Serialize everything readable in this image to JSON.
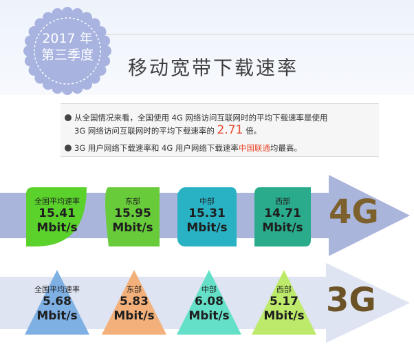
{
  "badge": {
    "line1": "2017 年",
    "line2": "第三季度"
  },
  "title": "移动宽带下载速率",
  "bullets": {
    "b1_l1": "从全国情况来看，全国使用 4G 网络访问互联网时的平均下载速率是使用",
    "b1_l2": "3G 网络访问互联网时的平均下载速率的",
    "b1_num": "2.71",
    "b1_tail": "倍。",
    "b2_pre": "3G 用户网络下载速率和 4G 用户网络下载速率",
    "b2_red": "中国联通",
    "b2_post": "均最高。"
  },
  "g4": {
    "label": "4G",
    "panels": [
      {
        "name": "全国平均速率",
        "value": "15.41",
        "unit": "Mbit/s"
      },
      {
        "name": "东部",
        "value": "15.95",
        "unit": "Mbit/s"
      },
      {
        "name": "中部",
        "value": "15.31",
        "unit": "Mbit/s"
      },
      {
        "name": "西部",
        "value": "14.71",
        "unit": "Mbit/s"
      }
    ]
  },
  "g3": {
    "label": "3G",
    "panels": [
      {
        "name": "全国平均速率",
        "value": "5.68",
        "unit": "Mbit/s"
      },
      {
        "name": "东部",
        "value": "5.83",
        "unit": "Mbit/s"
      },
      {
        "name": "中部",
        "value": "6.08",
        "unit": "Mbit/s"
      },
      {
        "name": "西部",
        "value": "5.17",
        "unit": "Mbit/s"
      }
    ]
  },
  "colors": {
    "badge": "#a8b3e0",
    "arrow4g": "#aab5dc",
    "arrow3g": "#dfe4f2",
    "label4g": "#7c612c",
    "label3g": "#6b5327",
    "p4g_0": "#5bd12c",
    "p4g_1": "#68cc3a",
    "p4g_2": "#29b1c4",
    "p4g_3": "#2aab8c",
    "p3g_0": "#7fb0e4",
    "p3g_1": "#f4b07a",
    "p3g_2": "#65e0c8",
    "p3g_3": "#bdea6a"
  }
}
